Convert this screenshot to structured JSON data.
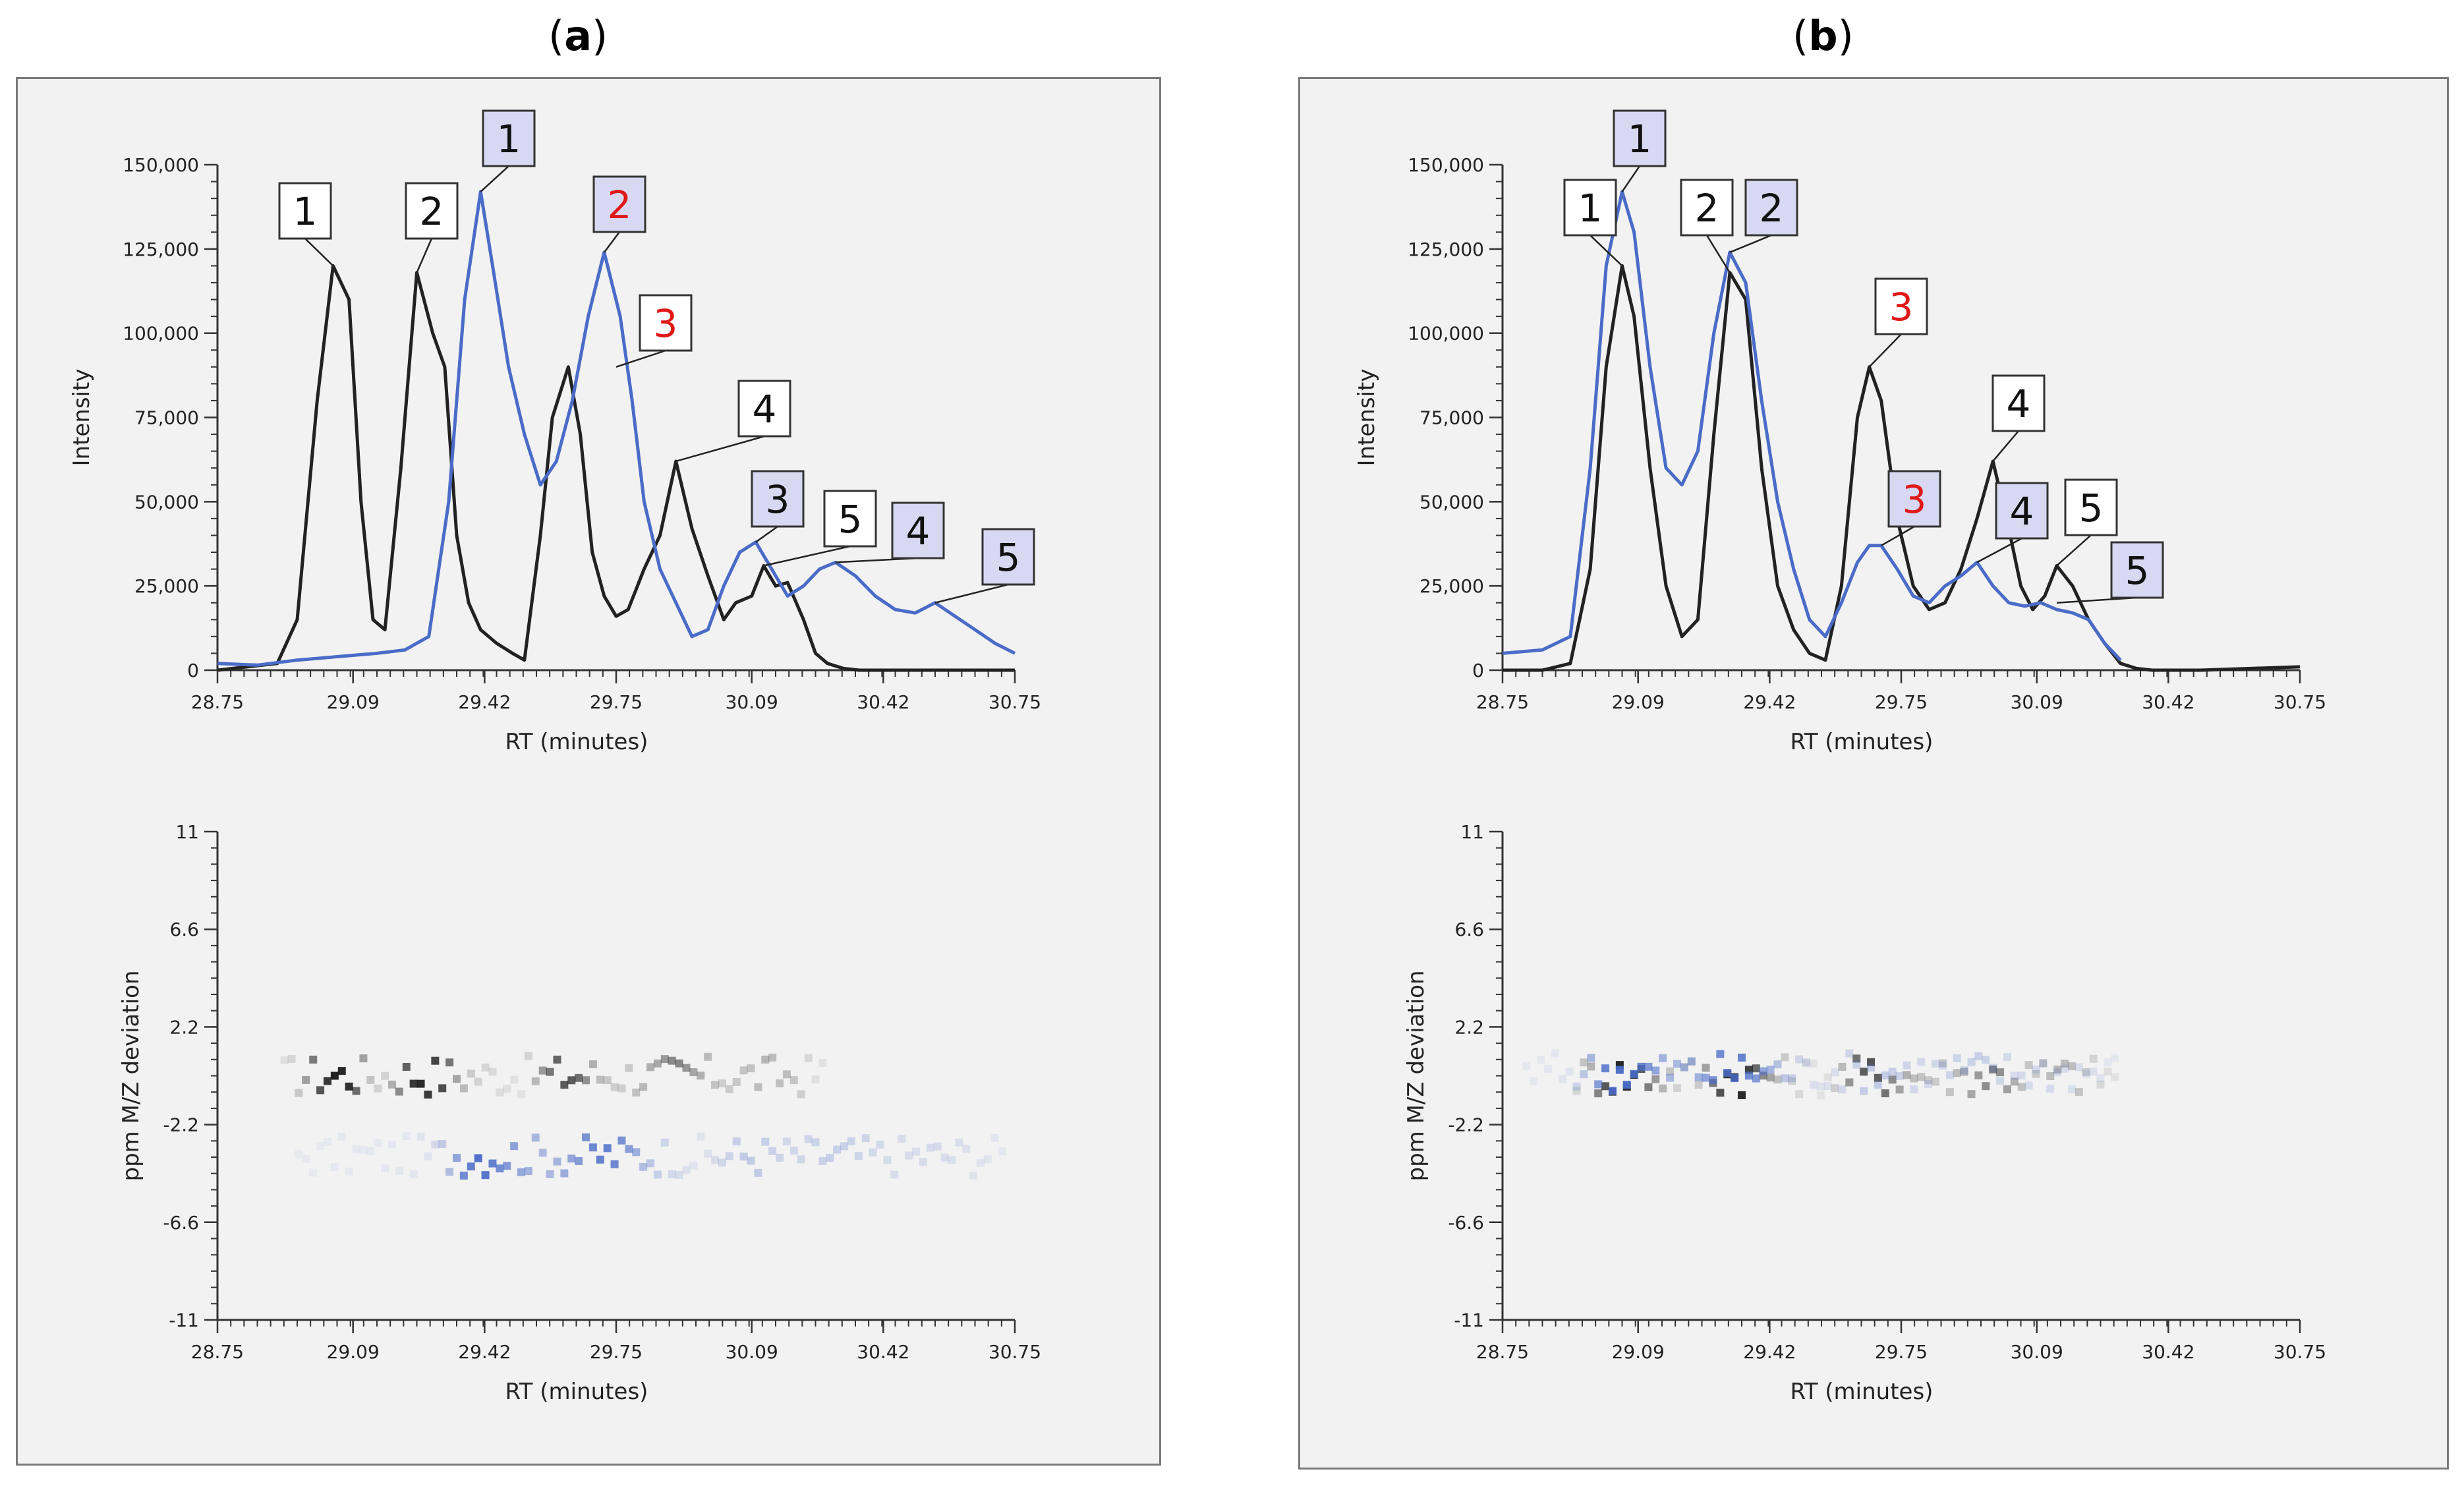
{
  "colors": {
    "black_series": "#222222",
    "blue_series": "#4a6cc8",
    "callout_white": "#ffffff",
    "callout_blue": "#d8d8f2",
    "callout_red_text": "#e01818",
    "frame_bg": "#f2f2f2"
  },
  "panels": [
    {
      "label_open": "(",
      "label_letter": "a",
      "label_close": ")"
    },
    {
      "label_open": "(",
      "label_letter": "b",
      "label_close": ")"
    }
  ],
  "chart_data": [
    {
      "panel": "a",
      "type": "line",
      "xlabel": "RT (minutes)",
      "ylabel": "Intensity",
      "xlim": [
        28.75,
        30.75
      ],
      "ylim": [
        0,
        150000
      ],
      "x_tick_labels": [
        "28.75",
        "29.09",
        "29.42",
        "29.75",
        "30.09",
        "30.42",
        "30.75"
      ],
      "x_ticks": [
        28.75,
        29.09,
        29.42,
        29.75,
        30.09,
        30.42,
        30.75
      ],
      "y_tick_labels": [
        "0",
        "25,000",
        "50,000",
        "75,000",
        "100,000",
        "125,000",
        "150,000"
      ],
      "y_ticks": [
        0,
        25000,
        50000,
        75000,
        100000,
        125000,
        150000
      ],
      "series": [
        {
          "name": "black",
          "x": [
            28.75,
            28.9,
            28.95,
            29.0,
            29.04,
            29.08,
            29.11,
            29.14,
            29.17,
            29.21,
            29.25,
            29.29,
            29.32,
            29.35,
            29.38,
            29.41,
            29.45,
            29.49,
            29.52,
            29.56,
            29.59,
            29.63,
            29.66,
            29.69,
            29.72,
            29.75,
            29.78,
            29.82,
            29.86,
            29.9,
            29.94,
            29.98,
            30.02,
            30.05,
            30.09,
            30.12,
            30.15,
            30.18,
            30.22,
            30.25,
            30.28,
            30.32,
            30.36,
            30.4,
            30.44,
            30.48,
            30.75
          ],
          "y": [
            0,
            2000,
            15000,
            80000,
            120000,
            110000,
            50000,
            15000,
            12000,
            60000,
            118000,
            100000,
            90000,
            40000,
            20000,
            12000,
            8000,
            5000,
            3000,
            40000,
            75000,
            90000,
            70000,
            35000,
            22000,
            16000,
            18000,
            30000,
            40000,
            62000,
            42000,
            28000,
            15000,
            20000,
            22000,
            31000,
            25000,
            26000,
            15000,
            5000,
            2000,
            500,
            0,
            0,
            0,
            0,
            0
          ]
        },
        {
          "name": "blue",
          "x": [
            28.75,
            28.85,
            28.95,
            29.05,
            29.15,
            29.22,
            29.28,
            29.33,
            29.37,
            29.41,
            29.44,
            29.48,
            29.52,
            29.56,
            29.6,
            29.64,
            29.68,
            29.72,
            29.76,
            29.79,
            29.82,
            29.86,
            29.9,
            29.94,
            29.98,
            30.02,
            30.06,
            30.1,
            30.14,
            30.18,
            30.22,
            30.26,
            30.3,
            30.35,
            30.4,
            30.45,
            30.5,
            30.55,
            30.6,
            30.65,
            30.7,
            30.75
          ],
          "y": [
            2000,
            1500,
            3000,
            4000,
            5000,
            6000,
            10000,
            50000,
            110000,
            142000,
            120000,
            90000,
            70000,
            55000,
            62000,
            80000,
            105000,
            124000,
            105000,
            80000,
            50000,
            30000,
            20000,
            10000,
            12000,
            25000,
            35000,
            38000,
            30000,
            22000,
            25000,
            30000,
            32000,
            28000,
            22000,
            18000,
            17000,
            20000,
            16000,
            12000,
            8000,
            5000
          ]
        }
      ],
      "callouts": [
        {
          "text": "1",
          "style": "white",
          "text_color": "black",
          "series": "black",
          "point": [
            29.04,
            120000
          ]
        },
        {
          "text": "2",
          "style": "white",
          "text_color": "black",
          "series": "black",
          "point": [
            29.25,
            118000
          ]
        },
        {
          "text": "1",
          "style": "blue",
          "text_color": "black",
          "series": "blue",
          "point": [
            29.41,
            142000
          ]
        },
        {
          "text": "2",
          "style": "blue",
          "text_color": "red",
          "series": "blue",
          "point": [
            29.72,
            124000
          ]
        },
        {
          "text": "3",
          "style": "white",
          "text_color": "red",
          "series": "black",
          "point": [
            29.75,
            90000
          ]
        },
        {
          "text": "4",
          "style": "white",
          "text_color": "black",
          "series": "black",
          "point": [
            29.9,
            62000
          ]
        },
        {
          "text": "3",
          "style": "blue",
          "text_color": "black",
          "series": "blue",
          "point": [
            30.1,
            38000
          ]
        },
        {
          "text": "5",
          "style": "white",
          "text_color": "black",
          "series": "black",
          "point": [
            30.12,
            31000
          ]
        },
        {
          "text": "4",
          "style": "blue",
          "text_color": "black",
          "series": "blue",
          "point": [
            30.3,
            32000
          ]
        },
        {
          "text": "5",
          "style": "blue",
          "text_color": "black",
          "series": "blue",
          "point": [
            30.55,
            20000
          ]
        }
      ],
      "deviation_plot": {
        "type": "scatter",
        "xlabel": "RT (minutes)",
        "ylabel": "ppm M/Z deviation",
        "xlim": [
          28.75,
          30.75
        ],
        "ylim": [
          -11,
          11
        ],
        "x_tick_labels": [
          "28.75",
          "29.09",
          "29.42",
          "29.75",
          "30.09",
          "30.42",
          "30.75"
        ],
        "y_tick_labels": [
          "-11",
          "-6.6",
          "-2.2",
          "2.2",
          "6.6",
          "11"
        ],
        "y_ticks": [
          -11,
          -6.6,
          -2.2,
          2.2,
          6.6,
          11
        ],
        "black_band_ppm": 0.0,
        "blue_band_ppm": -3.6
      }
    },
    {
      "panel": "b",
      "type": "line",
      "xlabel": "RT (minutes)",
      "ylabel": "Intensity",
      "xlim": [
        28.75,
        30.75
      ],
      "ylim": [
        0,
        150000
      ],
      "x_tick_labels": [
        "28.75",
        "29.09",
        "29.42",
        "29.75",
        "30.09",
        "30.42",
        "30.75"
      ],
      "x_ticks": [
        28.75,
        29.09,
        29.42,
        29.75,
        30.09,
        30.42,
        30.75
      ],
      "y_tick_labels": [
        "0",
        "25,000",
        "50,000",
        "75,000",
        "100,000",
        "125,000",
        "150,000"
      ],
      "y_ticks": [
        0,
        25000,
        50000,
        75000,
        100000,
        125000,
        150000
      ],
      "series": [
        {
          "name": "black",
          "x": [
            28.75,
            28.85,
            28.92,
            28.97,
            29.01,
            29.05,
            29.08,
            29.12,
            29.16,
            29.2,
            29.24,
            29.28,
            29.32,
            29.36,
            29.4,
            29.44,
            29.48,
            29.52,
            29.56,
            29.6,
            29.64,
            29.67,
            29.7,
            29.74,
            29.78,
            29.82,
            29.86,
            29.9,
            29.94,
            29.98,
            30.02,
            30.05,
            30.08,
            30.11,
            30.14,
            30.18,
            30.22,
            30.26,
            30.3,
            30.34,
            30.38,
            30.42,
            30.5,
            30.75
          ],
          "y": [
            0,
            0,
            2000,
            30000,
            90000,
            120000,
            105000,
            60000,
            25000,
            10000,
            15000,
            70000,
            118000,
            110000,
            60000,
            25000,
            12000,
            5000,
            3000,
            25000,
            75000,
            90000,
            80000,
            45000,
            25000,
            18000,
            20000,
            30000,
            45000,
            62000,
            42000,
            25000,
            18000,
            22000,
            31000,
            25000,
            15000,
            8000,
            2000,
            500,
            0,
            0,
            0,
            1000
          ]
        },
        {
          "name": "blue",
          "x": [
            28.75,
            28.85,
            28.92,
            28.97,
            29.01,
            29.05,
            29.08,
            29.12,
            29.16,
            29.2,
            29.24,
            29.28,
            29.32,
            29.36,
            29.4,
            29.44,
            29.48,
            29.52,
            29.56,
            29.6,
            29.64,
            29.67,
            29.7,
            29.74,
            29.78,
            29.82,
            29.86,
            29.9,
            29.94,
            29.98,
            30.02,
            30.06,
            30.1,
            30.14,
            30.18,
            30.22,
            30.26,
            30.3
          ],
          "y": [
            5000,
            6000,
            10000,
            60000,
            120000,
            142000,
            130000,
            90000,
            60000,
            55000,
            65000,
            100000,
            124000,
            115000,
            80000,
            50000,
            30000,
            15000,
            10000,
            20000,
            32000,
            37000,
            37000,
            30000,
            22000,
            20000,
            25000,
            28000,
            32000,
            25000,
            20000,
            19000,
            20000,
            18000,
            17000,
            15000,
            8000,
            3000
          ]
        }
      ],
      "callouts": [
        {
          "text": "1",
          "style": "white",
          "text_color": "black",
          "series": "black",
          "point": [
            29.05,
            120000
          ]
        },
        {
          "text": "1",
          "style": "blue",
          "text_color": "black",
          "series": "blue",
          "point": [
            29.05,
            142000
          ]
        },
        {
          "text": "2",
          "style": "white",
          "text_color": "black",
          "series": "black",
          "point": [
            29.32,
            118000
          ]
        },
        {
          "text": "2",
          "style": "blue",
          "text_color": "black",
          "series": "blue",
          "point": [
            29.32,
            124000
          ]
        },
        {
          "text": "3",
          "style": "white",
          "text_color": "red",
          "series": "black",
          "point": [
            29.67,
            90000
          ]
        },
        {
          "text": "3",
          "style": "blue",
          "text_color": "red",
          "series": "blue",
          "point": [
            29.7,
            37000
          ]
        },
        {
          "text": "4",
          "style": "white",
          "text_color": "black",
          "series": "black",
          "point": [
            29.98,
            62000
          ]
        },
        {
          "text": "4",
          "style": "blue",
          "text_color": "black",
          "series": "blue",
          "point": [
            29.94,
            32000
          ]
        },
        {
          "text": "5",
          "style": "white",
          "text_color": "black",
          "series": "black",
          "point": [
            30.14,
            31000
          ]
        },
        {
          "text": "5",
          "style": "blue",
          "text_color": "black",
          "series": "blue",
          "point": [
            30.14,
            20000
          ]
        }
      ],
      "deviation_plot": {
        "type": "scatter",
        "xlabel": "RT (minutes)",
        "ylabel": "ppm M/Z deviation",
        "xlim": [
          28.75,
          30.75
        ],
        "ylim": [
          -11,
          11
        ],
        "x_tick_labels": [
          "28.75",
          "29.09",
          "29.42",
          "29.75",
          "30.09",
          "30.42",
          "30.75"
        ],
        "y_tick_labels": [
          "-11",
          "-6.6",
          "-2.2",
          "2.2",
          "6.6",
          "11"
        ],
        "y_ticks": [
          -11,
          -6.6,
          -2.2,
          2.2,
          6.6,
          11
        ],
        "black_band_ppm": 0.0,
        "blue_band_ppm": 0.2
      }
    }
  ]
}
